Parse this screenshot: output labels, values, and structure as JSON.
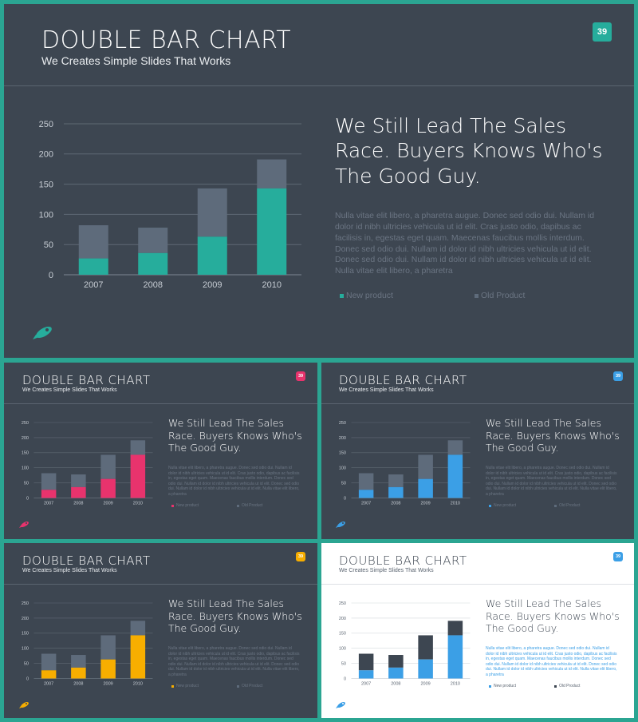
{
  "slide_title": "DOUBLE BAR CHART",
  "slide_subtitle": "We Creates Simple Slides That Works",
  "page_number": "39",
  "headline": "We Still Lead The Sales Race. Buyers Knows Who's The Good Guy.",
  "body_text": "Nulla vitae elit libero, a pharetra augue. Donec sed odio dui. Nullam id dolor id nibh ultricies vehicula ut id elit. Cras justo odio, dapibus ac facilisis in, egestas eget quam. Maecenas faucibus mollis interdum. Donec sed odio dui. Nullam id dolor id nibh ultricies vehicula ut id elit. Donec sed odio dui. Nullam id dolor id nibh ultricies vehicula ut id elit. Nulla vitae elit libero, a pharetra",
  "legend": {
    "new_product": "New product",
    "old_product": "Old Product"
  },
  "colors": {
    "background_dark": "#3d4651",
    "background_light": "#ffffff",
    "frame": "#2ba592",
    "old_product_bar": "#5e6b7b",
    "teal": "#26ad9c",
    "pink": "#e8336d",
    "blue": "#3b9fe6",
    "yellow": "#f7ae00"
  },
  "variants": [
    {
      "name": "teal",
      "accent": "#26ad9c",
      "theme": "dark"
    },
    {
      "name": "pink",
      "accent": "#e8336d",
      "theme": "dark"
    },
    {
      "name": "blue",
      "accent": "#3b9fe6",
      "theme": "dark"
    },
    {
      "name": "yellow",
      "accent": "#f7ae00",
      "theme": "dark"
    },
    {
      "name": "white",
      "accent": "#3b9fe6",
      "theme": "light"
    }
  ],
  "icon": "rocket-icon",
  "chart_data": {
    "type": "bar",
    "stacked": true,
    "categories": [
      "2007",
      "2008",
      "2009",
      "2010"
    ],
    "series": [
      {
        "name": "New product",
        "values": [
          27,
          36,
          63,
          143
        ]
      },
      {
        "name": "Old Product",
        "values": [
          55,
          42,
          80,
          48
        ]
      }
    ],
    "ylim": [
      0,
      250
    ],
    "yticks": [
      0,
      50,
      100,
      150,
      200,
      250
    ],
    "grid": true,
    "legend_position": "bottom"
  }
}
